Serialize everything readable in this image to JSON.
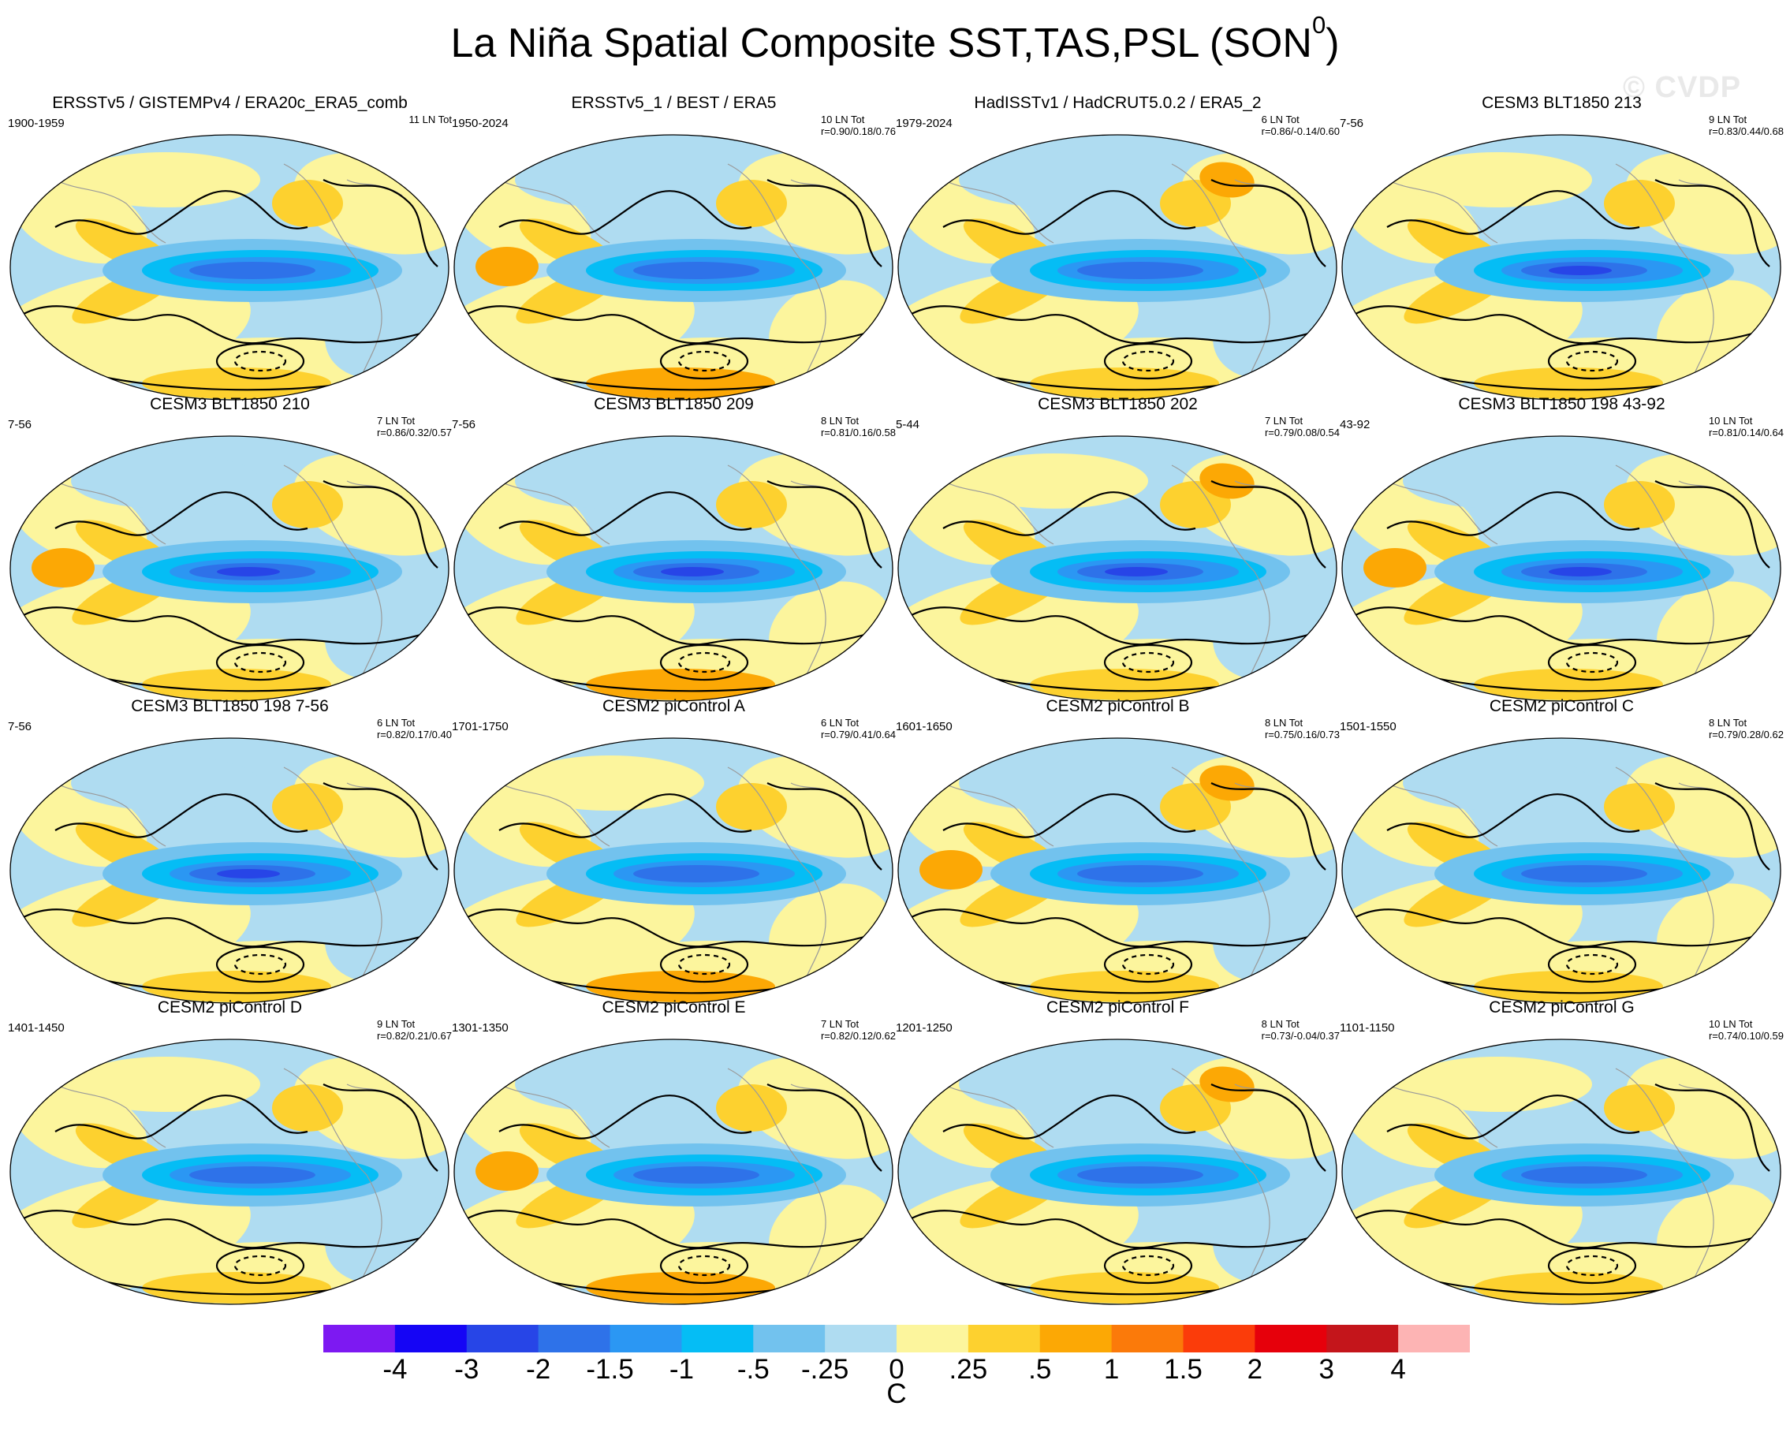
{
  "title": {
    "text": "La Niña Spatial Composite SST,TAS,PSL (SON",
    "superscript": "0",
    "close": ")"
  },
  "watermark": "© CVDP",
  "colors": {
    "neutral_pos": "#fcf59d",
    "pos_025": "#fdd12f",
    "pos_05": "#fca805",
    "pos_1": "#fb7a0a",
    "pos_15": "#fb3c0a",
    "pos_2": "#e6000b",
    "pos_3": "#c4151b",
    "pos_4": "#fdb4b4",
    "neg_025": "#afdcf1",
    "neg_05": "#72c2ee",
    "neg_1": "#05bdf5",
    "neg_15": "#2b97f3",
    "neg_2": "#2e72e9",
    "neg_3": "#2745e7",
    "neg_4": "#1505f5",
    "neg_min": "#7d19f2",
    "land_outline": "#9a9a9a",
    "psl_contour": "#000000"
  },
  "panels": [
    {
      "title": "ERSSTv5 / GISTEMPv4 / ERA20c_ERA5_comb",
      "period": "1900-1959",
      "stats": [
        "11 LN Tot"
      ]
    },
    {
      "title": "ERSSTv5_1 / BEST / ERA5",
      "period": "1950-2024",
      "stats": [
        "10 LN Tot",
        "r=0.90/0.18/0.76"
      ]
    },
    {
      "title": "HadISSTv1 / HadCRUT5.0.2 / ERA5_2",
      "period": "1979-2024",
      "stats": [
        "6 LN Tot",
        "r=0.86/-0.14/0.60"
      ]
    },
    {
      "title": "CESM3 BLT1850 213",
      "period": "7-56",
      "stats": [
        "9 LN Tot",
        "r=0.83/0.44/0.68"
      ]
    },
    {
      "title": "CESM3 BLT1850 210",
      "period": "7-56",
      "stats": [
        "7 LN Tot",
        "r=0.86/0.32/0.57"
      ]
    },
    {
      "title": "CESM3 BLT1850 209",
      "period": "7-56",
      "stats": [
        "8 LN Tot",
        "r=0.81/0.16/0.58"
      ]
    },
    {
      "title": "CESM3 BLT1850 202",
      "period": "5-44",
      "stats": [
        "7 LN Tot",
        "r=0.79/0.08/0.54"
      ]
    },
    {
      "title": "CESM3 BLT1850 198 43-92",
      "period": "43-92",
      "stats": [
        "10 LN Tot",
        "r=0.81/0.14/0.64"
      ]
    },
    {
      "title": "CESM3 BLT1850 198 7-56",
      "period": "7-56",
      "stats": [
        "6 LN Tot",
        "r=0.82/0.17/0.40"
      ]
    },
    {
      "title": "CESM2 piControl A",
      "period": "1701-1750",
      "stats": [
        "6 LN Tot",
        "r=0.79/0.41/0.64"
      ]
    },
    {
      "title": "CESM2 piControl B",
      "period": "1601-1650",
      "stats": [
        "8 LN Tot",
        "r=0.75/0.16/0.73"
      ]
    },
    {
      "title": "CESM2 piControl C",
      "period": "1501-1550",
      "stats": [
        "8 LN Tot",
        "r=0.79/0.28/0.62"
      ]
    },
    {
      "title": "CESM2 piControl D",
      "period": "1401-1450",
      "stats": [
        "9 LN Tot",
        "r=0.82/0.21/0.67"
      ]
    },
    {
      "title": "CESM2 piControl E",
      "period": "1301-1350",
      "stats": [
        "7 LN Tot",
        "r=0.82/0.12/0.62"
      ]
    },
    {
      "title": "CESM2 piControl F",
      "period": "1201-1250",
      "stats": [
        "8 LN Tot",
        "r=0.73/-0.04/0.37"
      ]
    },
    {
      "title": "CESM2 piControl G",
      "period": "1101-1150",
      "stats": [
        "10 LN Tot",
        "r=0.74/0.10/0.59"
      ]
    }
  ],
  "colorbar": {
    "colors": [
      "#7d19f2",
      "#1505f5",
      "#2745e7",
      "#2e72e9",
      "#2b97f3",
      "#05bdf5",
      "#72c2ee",
      "#afdcf1",
      "#fcf59d",
      "#fdd12f",
      "#fca805",
      "#fb7a0a",
      "#fb3c0a",
      "#e6000b",
      "#c4151b",
      "#fdb4b4"
    ],
    "labels": [
      "-4",
      "-3",
      "-2",
      "-1.5",
      "-1",
      "-.5",
      "-.25",
      "0",
      ".25",
      ".5",
      "1",
      "1.5",
      "2",
      "3",
      "4"
    ],
    "units": "C"
  }
}
